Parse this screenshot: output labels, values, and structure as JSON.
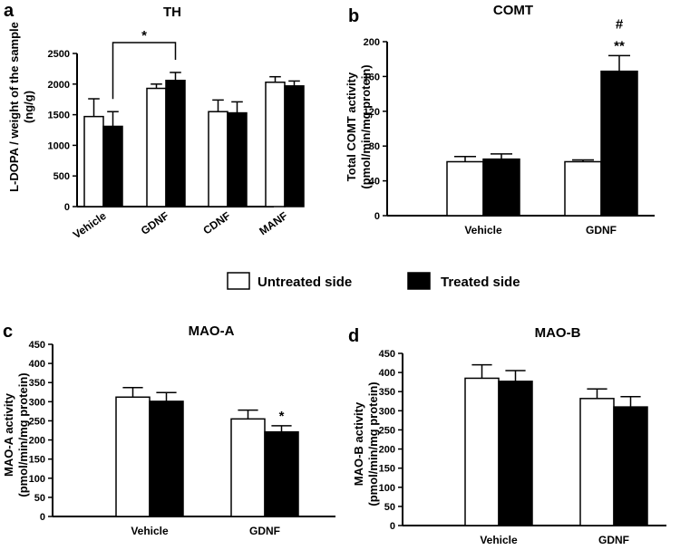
{
  "legend": {
    "items": [
      {
        "label": "Untreated side",
        "color": "#ffffff"
      },
      {
        "label": "Treated side",
        "color": "#000000"
      }
    ]
  },
  "colors": {
    "untreated": "#ffffff",
    "treated": "#000000",
    "axis": "#000000"
  },
  "panels": [
    {
      "letter": "a",
      "ylabel_lines": [
        "L-DOPA / weight of the sample",
        "(ng/g)"
      ]
    },
    {
      "letter": "b",
      "ylabel_lines": [
        "Total COMT activity",
        "(pmol/min/mg protein)"
      ]
    },
    {
      "letter": "c",
      "ylabel_lines": [
        "MAO-A activity",
        "(pmol/min/mg protein)"
      ]
    },
    {
      "letter": "d",
      "ylabel_lines": [
        "MAO-B activity",
        "(pmol/min/mg protein)"
      ]
    }
  ],
  "chart_data": [
    {
      "type": "bar",
      "title": "TH",
      "xlabel": "",
      "ylabel": "L-DOPA / weight of the sample (ng/g)",
      "ylim": [
        0,
        2500
      ],
      "yticks": [
        0,
        500,
        1000,
        1500,
        2000,
        2500
      ],
      "categories": [
        "Vehicle",
        "GDNF",
        "CDNF",
        "MANF"
      ],
      "series": [
        {
          "name": "Untreated side",
          "values": [
            1470,
            1930,
            1550,
            2030
          ],
          "errors": [
            290,
            70,
            190,
            90
          ]
        },
        {
          "name": "Treated side",
          "values": [
            1310,
            2060,
            1530,
            1970
          ],
          "errors": [
            240,
            130,
            180,
            80
          ]
        }
      ],
      "annotations": [
        {
          "type": "bracket",
          "text": "*",
          "from": "Vehicle treated",
          "to": "GDNF treated"
        }
      ]
    },
    {
      "type": "bar",
      "title": "COMT",
      "xlabel": "",
      "ylabel": "Total COMT activity (pmol/min/mg protein)",
      "ylim": [
        0,
        200
      ],
      "yticks": [
        0,
        40,
        80,
        120,
        160,
        200
      ],
      "categories": [
        "Vehicle",
        "GDNF"
      ],
      "series": [
        {
          "name": "Untreated side",
          "values": [
            62,
            62
          ],
          "errors": [
            6,
            2
          ]
        },
        {
          "name": "Treated side",
          "values": [
            65,
            166
          ],
          "errors": [
            6,
            18
          ]
        }
      ],
      "annotations": [
        {
          "text": "**",
          "category": "GDNF",
          "series": "Treated side"
        },
        {
          "text": "#",
          "category": "GDNF",
          "series": "Treated side"
        }
      ]
    },
    {
      "type": "bar",
      "title": "MAO-A",
      "xlabel": "",
      "ylabel": "MAO-A activity (pmol/min/mg protein)",
      "ylim": [
        0,
        450
      ],
      "yticks": [
        0,
        50,
        100,
        150,
        200,
        250,
        300,
        350,
        400,
        450
      ],
      "categories": [
        "Vehicle",
        "GDNF"
      ],
      "series": [
        {
          "name": "Untreated side",
          "values": [
            312,
            255
          ],
          "errors": [
            25,
            23
          ]
        },
        {
          "name": "Treated side",
          "values": [
            301,
            221
          ],
          "errors": [
            23,
            16
          ]
        }
      ],
      "annotations": [
        {
          "text": "*",
          "category": "GDNF",
          "series": "Treated side"
        }
      ]
    },
    {
      "type": "bar",
      "title": "MAO-B",
      "xlabel": "",
      "ylabel": "MAO-B activity (pmol/min/mg protein)",
      "ylim": [
        0,
        450
      ],
      "yticks": [
        0,
        50,
        100,
        150,
        200,
        250,
        300,
        350,
        400,
        450
      ],
      "categories": [
        "Vehicle",
        "GDNF"
      ],
      "series": [
        {
          "name": "Untreated side",
          "values": [
            385,
            332
          ],
          "errors": [
            35,
            25
          ]
        },
        {
          "name": "Treated side",
          "values": [
            377,
            310
          ],
          "errors": [
            28,
            27
          ]
        }
      ],
      "annotations": []
    }
  ]
}
